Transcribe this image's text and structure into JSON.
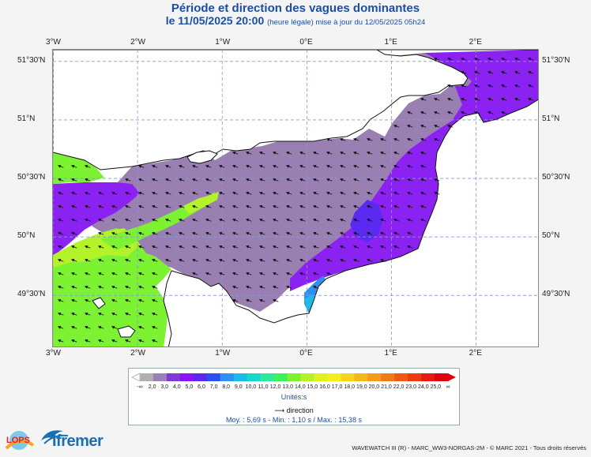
{
  "header": {
    "title": "Période et direction des vagues dominantes",
    "date_line": "le 11/05/2025 20:00",
    "date_note": "(heure légale) mise à jour du 12/05/2025 05h24"
  },
  "map": {
    "lon_ticks": [
      "3°W",
      "2°W",
      "1°W",
      "0°E",
      "1°E",
      "2°E"
    ],
    "lat_ticks": [
      "51°30'N",
      "51°N",
      "50°30'N",
      "50°N",
      "49°30'N"
    ],
    "lon_range": [
      -3.0,
      2.75
    ],
    "lat_range": [
      49.05,
      51.6
    ],
    "wave_direction_deg": 290,
    "arrow_convention": "towards",
    "period_zones_s": [
      {
        "region": "Western Channel south / Cotentin west",
        "period": 14
      },
      {
        "region": "Central Channel",
        "period": 2.5
      },
      {
        "region": "Eastern Channel / Seine bay offshore",
        "period": 4.5
      },
      {
        "region": "Bay of Seine coastal",
        "period": 6
      },
      {
        "region": "Le Havre estuary",
        "period": 9
      }
    ]
  },
  "legend": {
    "labels": [
      "2,0",
      "3,0",
      "4,0",
      "5,0",
      "6,0",
      "7,0",
      "8,0",
      "9,0",
      "10,0",
      "11,0",
      "12,0",
      "13,0",
      "14,0",
      "15,0",
      "16,0",
      "17,0",
      "18,0",
      "19,0",
      "20,0",
      "21,0",
      "22,0",
      "23,0",
      "24,0",
      "25,0"
    ],
    "colors": [
      "#b0b0b0",
      "#9b82b4",
      "#7c3ad9",
      "#8a14f5",
      "#5a2af0",
      "#2b50f0",
      "#2f8ff3",
      "#19bce6",
      "#16d6d0",
      "#2ee8a0",
      "#3ef05a",
      "#7cf233",
      "#b4f22a",
      "#e0f21e",
      "#f5f01a",
      "#f5d51a",
      "#f5b81a",
      "#f59a1a",
      "#f07a16",
      "#ee5a14",
      "#ec3a12",
      "#e81a10",
      "#e00010"
    ],
    "left_symbol": "-∞",
    "right_symbol": "∞",
    "unit": "Unités:s",
    "direction_label": "direction"
  },
  "stats": "Moy. : 5,69 s  -  Min. : 1,10 s / Max. : 15,38 s",
  "credits": "WAVEWATCH III (R) - MARC_WW3-NORGAS-2M - © MARC 2021 - Tous droits réservés",
  "logos": {
    "lops": "LOPS",
    "ifremer": "Ifremer"
  }
}
